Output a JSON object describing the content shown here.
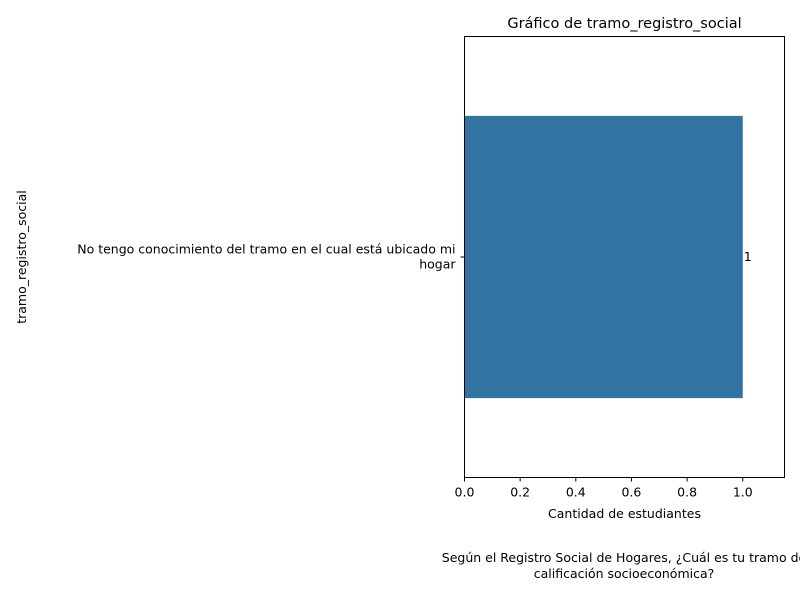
{
  "chart_data": {
    "type": "bar",
    "orientation": "horizontal",
    "title": "Gráfico de tramo_registro_social",
    "xlabel": "Cantidad de estudiantes",
    "ylabel": "tramo_registro_social",
    "categories": [
      "No tengo conocimiento del tramo en el cual está ubicado mi hogar"
    ],
    "category_label_lines": [
      [
        "No tengo conocimiento del tramo en el cual está ubicado mi",
        "hogar"
      ]
    ],
    "values": [
      1
    ],
    "value_labels": [
      "1"
    ],
    "xlim": [
      0,
      1.15
    ],
    "xticks": [
      0.0,
      0.2,
      0.4,
      0.6,
      0.8,
      1.0
    ],
    "xtick_labels": [
      "0.0",
      "0.2",
      "0.4",
      "0.6",
      "0.8",
      "1.0"
    ],
    "grid": false,
    "bar_color": "#3274a1"
  },
  "caption": {
    "line1": "Según el Registro Social de Hogares, ¿Cuál es tu tramo de",
    "line2": "calificación socioeconómica?"
  }
}
